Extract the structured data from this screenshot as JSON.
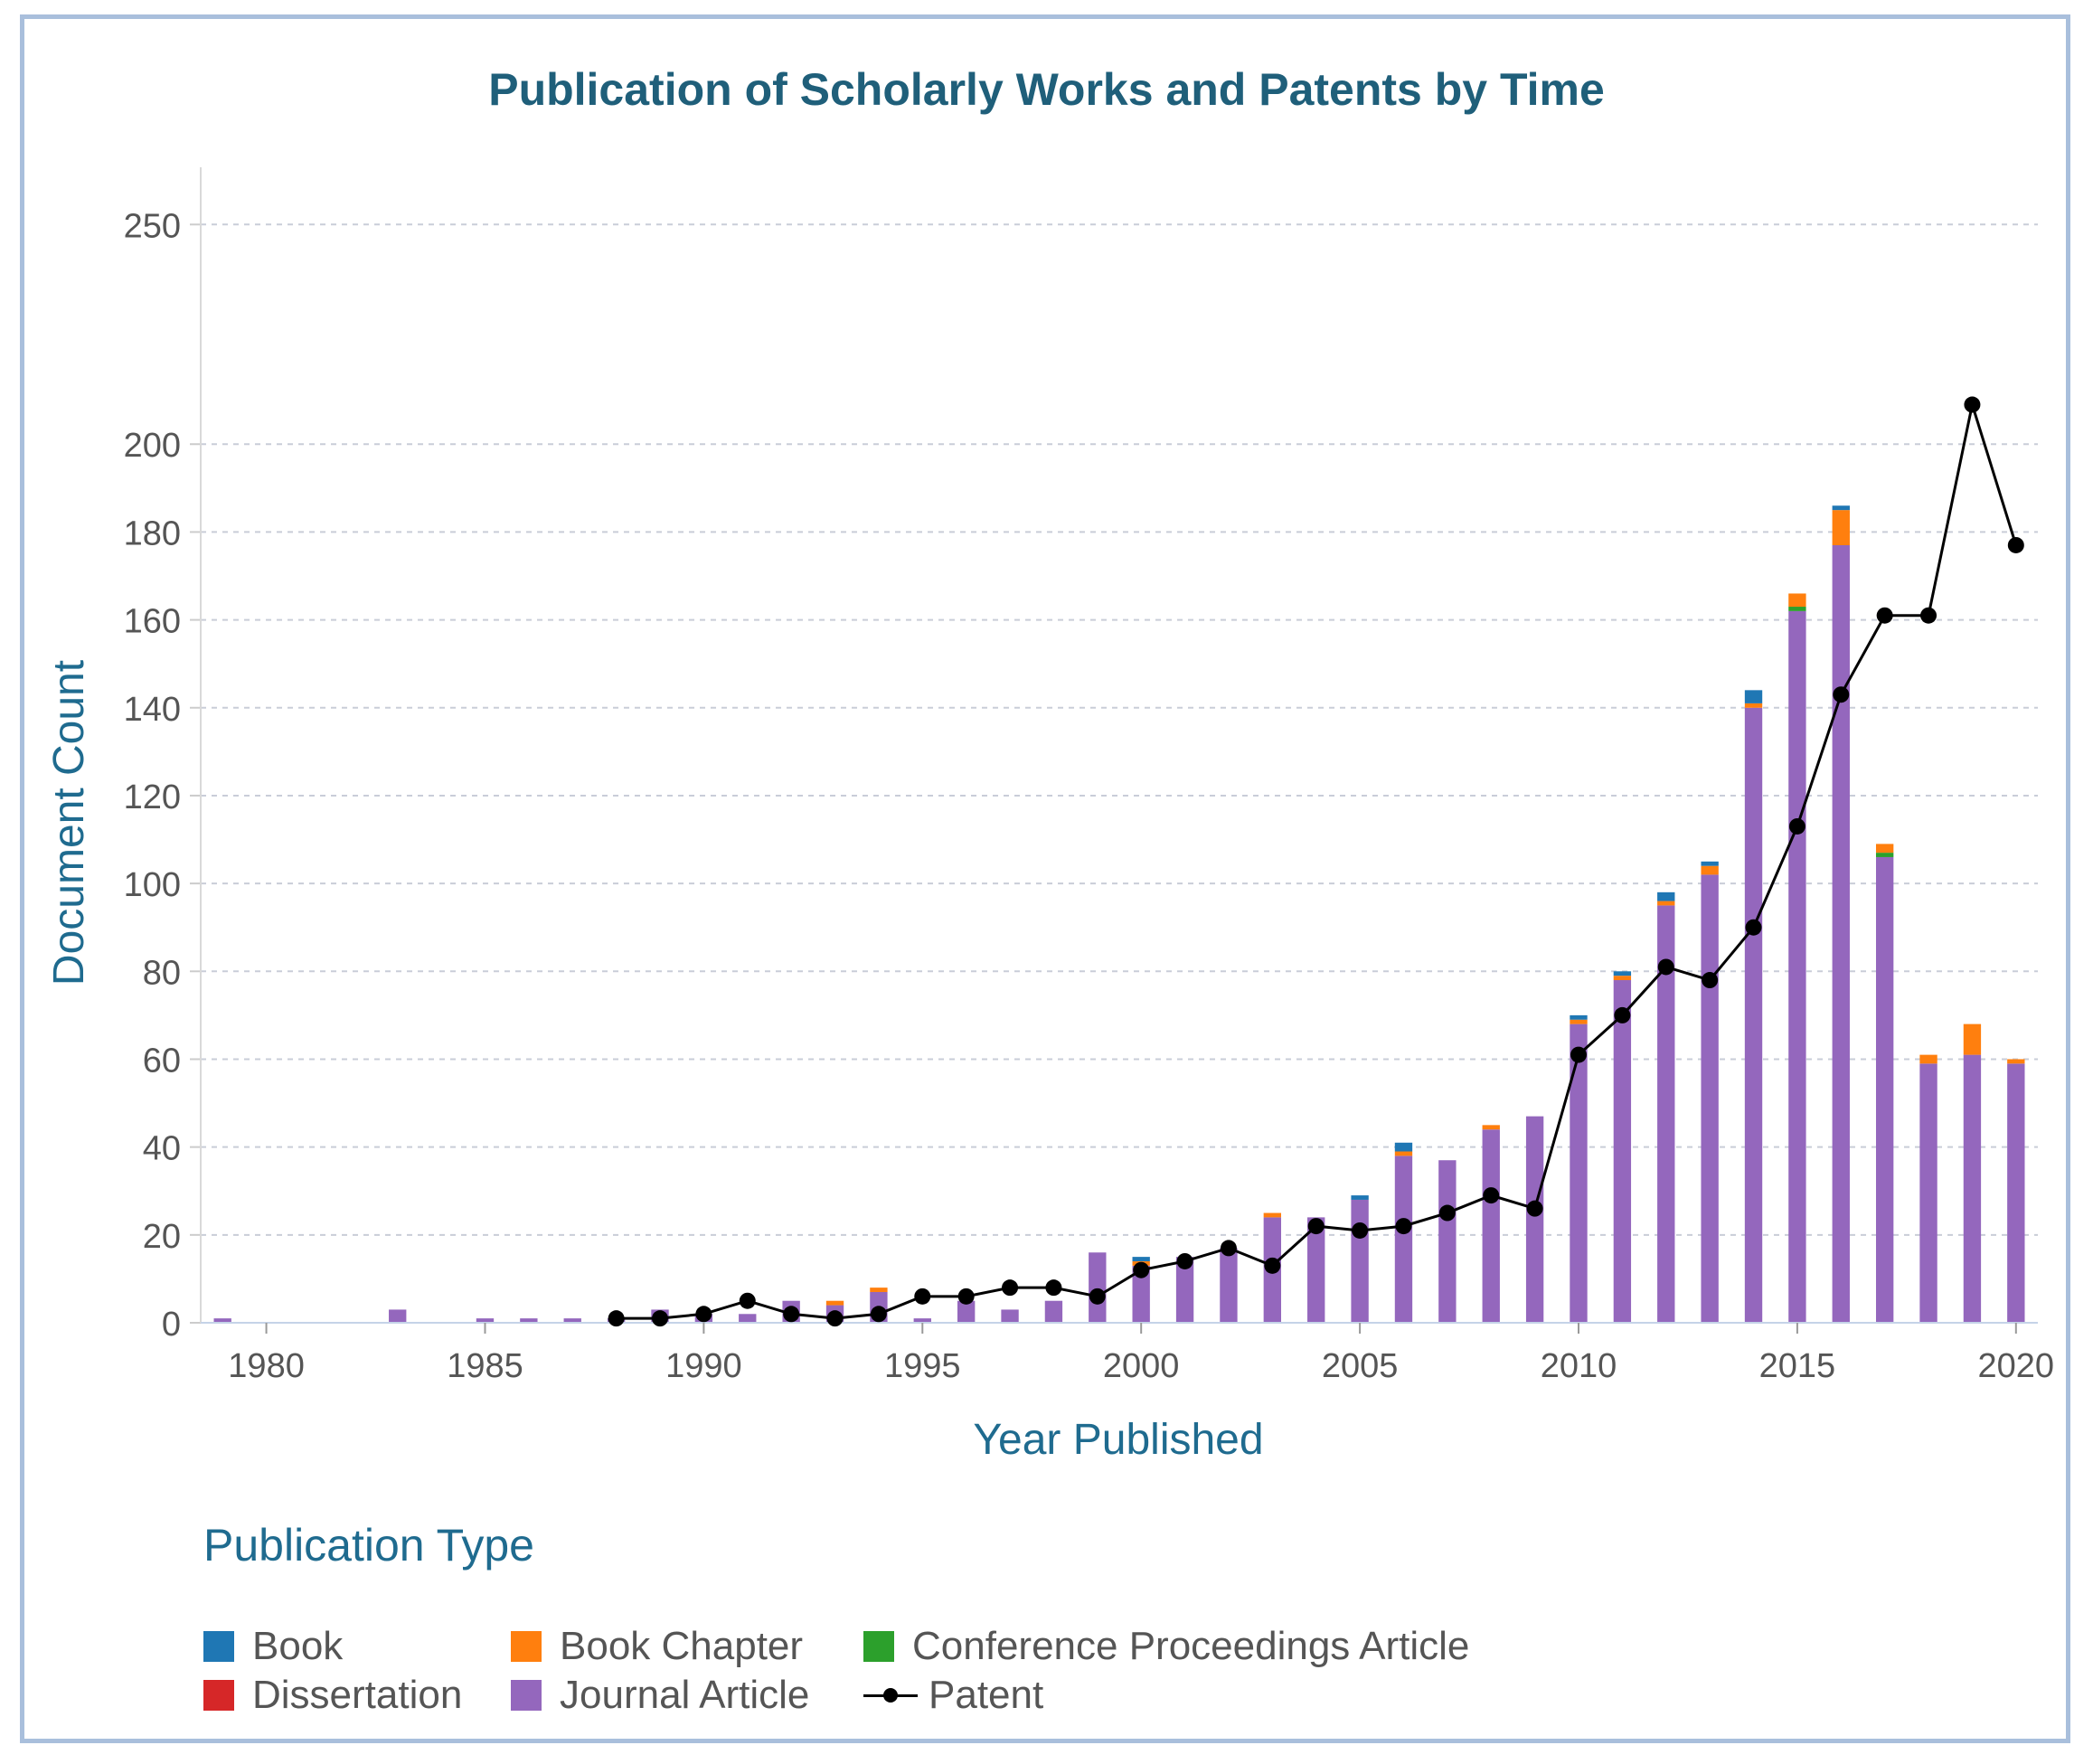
{
  "chart_data": {
    "type": "bar",
    "stacked": true,
    "title": "Publication of Scholarly Works and Patents by Time",
    "xlabel": "Year Published",
    "ylabel": "Document Count",
    "xlim": [
      1978.5,
      2020.5
    ],
    "ylim": [
      0,
      262
    ],
    "xticks": [
      1980,
      1985,
      1990,
      1995,
      2000,
      2005,
      2010,
      2015,
      2020
    ],
    "yticks": [
      0,
      20,
      40,
      60,
      80,
      100,
      120,
      140,
      160,
      180,
      200,
      250
    ],
    "grid": "horizontal dashed",
    "legend_title": "Publication Type",
    "legend_position": "bottom-left",
    "categories": [
      1979,
      1983,
      1985,
      1986,
      1987,
      1988,
      1989,
      1990,
      1991,
      1992,
      1993,
      1994,
      1995,
      1996,
      1997,
      1998,
      1999,
      2000,
      2001,
      2002,
      2003,
      2004,
      2005,
      2006,
      2007,
      2008,
      2009,
      2010,
      2011,
      2012,
      2013,
      2014,
      2015,
      2016,
      2017,
      2018,
      2019,
      2020
    ],
    "series": [
      {
        "name": "Journal Article",
        "kind": "bar",
        "color": "#9467bd",
        "values": [
          1,
          3,
          1,
          1,
          1,
          1,
          3,
          2,
          2,
          5,
          4,
          7,
          1,
          5,
          3,
          5,
          16,
          13,
          15,
          17,
          24,
          24,
          28,
          38,
          37,
          44,
          47,
          68,
          78,
          95,
          102,
          140,
          162,
          177,
          106,
          59,
          61,
          59
        ]
      },
      {
        "name": "Conference Proceedings Article",
        "kind": "bar",
        "color": "#2ca02c",
        "values": [
          0,
          0,
          0,
          0,
          0,
          0,
          0,
          0,
          0,
          0,
          0,
          0,
          0,
          0,
          0,
          0,
          0,
          0,
          0,
          0,
          0,
          0,
          0,
          0,
          0,
          0,
          0,
          0,
          0,
          0,
          0,
          0,
          1,
          0,
          1,
          0,
          0,
          0
        ]
      },
      {
        "name": "Dissertation",
        "kind": "bar",
        "color": "#d62728",
        "values": [
          0,
          0,
          0,
          0,
          0,
          0,
          0,
          0,
          0,
          0,
          0,
          0,
          0,
          0,
          0,
          0,
          0,
          0,
          0,
          0,
          0,
          0,
          0,
          0,
          0,
          0,
          0,
          0,
          0,
          0,
          0,
          0,
          0,
          0,
          0,
          0,
          0,
          0
        ]
      },
      {
        "name": "Book Chapter",
        "kind": "bar",
        "color": "#ff7f0e",
        "values": [
          0,
          0,
          0,
          0,
          0,
          0,
          0,
          0,
          0,
          0,
          1,
          1,
          0,
          0,
          0,
          0,
          0,
          1,
          0,
          0,
          1,
          0,
          0,
          1,
          0,
          1,
          0,
          1,
          1,
          1,
          2,
          1,
          3,
          8,
          2,
          2,
          7,
          1
        ]
      },
      {
        "name": "Book",
        "kind": "bar",
        "color": "#1f77b4",
        "values": [
          0,
          0,
          0,
          0,
          0,
          0,
          0,
          0,
          0,
          0,
          0,
          0,
          0,
          0,
          0,
          0,
          0,
          1,
          0,
          0,
          0,
          0,
          1,
          2,
          0,
          0,
          0,
          1,
          1,
          2,
          1,
          3,
          0,
          1,
          0,
          0,
          0,
          0
        ]
      }
    ],
    "patent": {
      "name": "Patent",
      "kind": "line",
      "color": "#000000",
      "x": [
        1988,
        1989,
        1990,
        1991,
        1992,
        1993,
        1994,
        1995,
        1996,
        1997,
        1998,
        1999,
        2000,
        2001,
        2002,
        2003,
        2004,
        2005,
        2006,
        2007,
        2008,
        2009,
        2010,
        2011,
        2012,
        2013,
        2014,
        2015,
        2016,
        2017,
        2018,
        2019,
        2020
      ],
      "values": [
        1,
        1,
        2,
        5,
        2,
        1,
        2,
        6,
        6,
        8,
        8,
        6,
        12,
        14,
        17,
        13,
        22,
        21,
        22,
        25,
        29,
        26,
        61,
        70,
        81,
        78,
        90,
        113,
        143,
        161,
        161,
        209,
        177
      ]
    }
  },
  "legend": {
    "title": "Publication Type",
    "items": [
      {
        "label": "Book",
        "color": "#1f77b4"
      },
      {
        "label": "Book Chapter",
        "color": "#ff7f0e"
      },
      {
        "label": "Conference Proceedings Article",
        "color": "#2ca02c"
      },
      {
        "label": "Dissertation",
        "color": "#d62728"
      },
      {
        "label": "Journal Article",
        "color": "#9467bd"
      },
      {
        "label": "Patent",
        "color": "#000000"
      }
    ]
  }
}
